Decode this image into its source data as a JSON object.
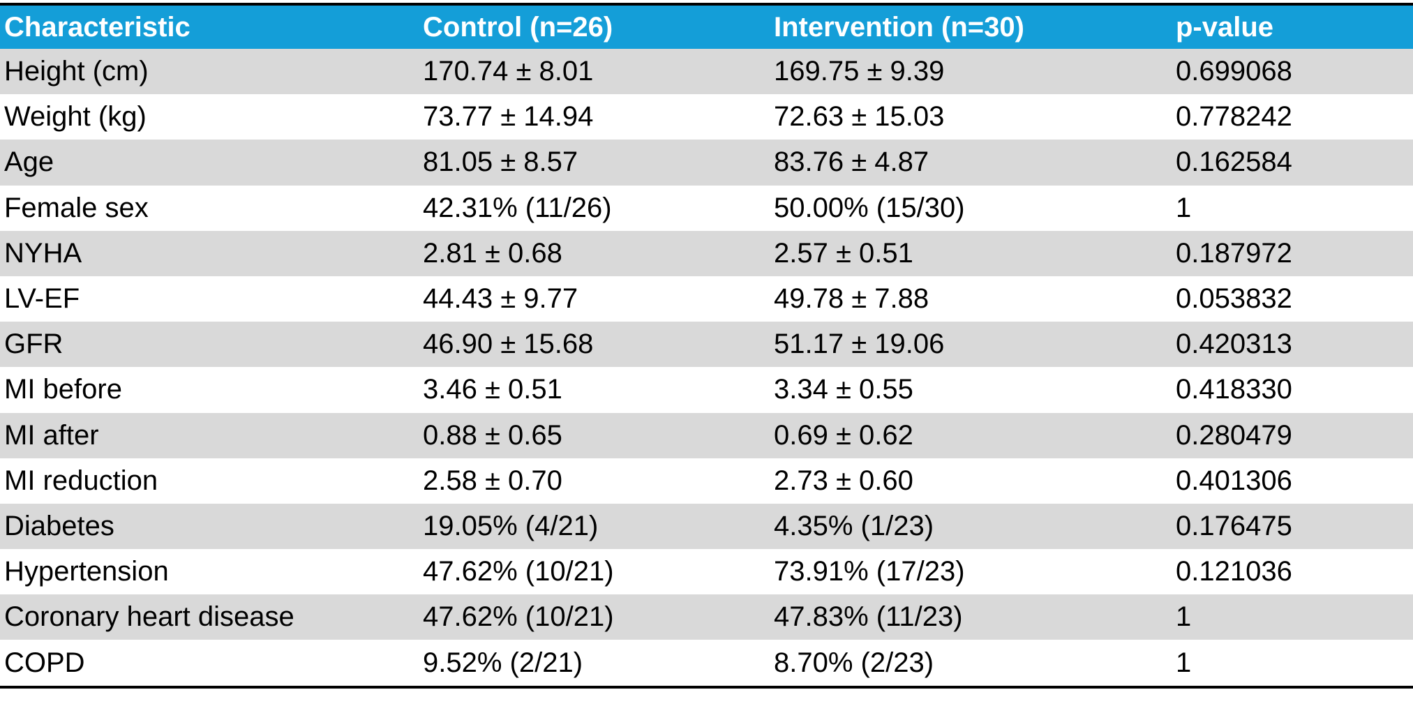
{
  "table": {
    "headers": [
      "Characteristic",
      "Control (n=26)",
      "Intervention (n=30)",
      "p-value"
    ],
    "rows": [
      [
        "Height (cm)",
        "170.74 ± 8.01",
        "169.75 ± 9.39",
        "0.699068"
      ],
      [
        "Weight (kg)",
        "73.77 ± 14.94",
        "72.63 ± 15.03",
        "0.778242"
      ],
      [
        "Age",
        "81.05 ± 8.57",
        "83.76 ± 4.87",
        "0.162584"
      ],
      [
        "Female sex",
        "42.31% (11/26)",
        "50.00% (15/30)",
        "1"
      ],
      [
        "NYHA",
        "2.81 ± 0.68",
        "2.57 ± 0.51",
        "0.187972"
      ],
      [
        "LV-EF",
        "44.43 ± 9.77",
        "49.78 ± 7.88",
        "0.053832"
      ],
      [
        "GFR",
        "46.90 ± 15.68",
        "51.17 ± 19.06",
        "0.420313"
      ],
      [
        "MI before",
        "3.46 ± 0.51",
        "3.34 ± 0.55",
        "0.418330"
      ],
      [
        "MI after",
        "0.88 ± 0.65",
        "0.69 ± 0.62",
        "0.280479"
      ],
      [
        "MI reduction",
        "2.58 ± 0.70",
        "2.73 ± 0.60",
        "0.401306"
      ],
      [
        "Diabetes",
        "19.05% (4/21)",
        "4.35% (1/23)",
        "0.176475"
      ],
      [
        "Hypertension",
        "47.62% (10/21)",
        "73.91% (17/23)",
        "0.121036"
      ],
      [
        "Coronary heart disease",
        "47.62% (10/21)",
        "47.83% (11/23)",
        "1"
      ],
      [
        "COPD",
        "9.52% (2/21)",
        "8.70% (2/23)",
        "1"
      ]
    ]
  },
  "colors": {
    "header_bg": "#149ed8",
    "header_text": "#ffffff",
    "row_alt": "#d9d9d9",
    "row_plain": "#ffffff",
    "rule": "#000000"
  }
}
